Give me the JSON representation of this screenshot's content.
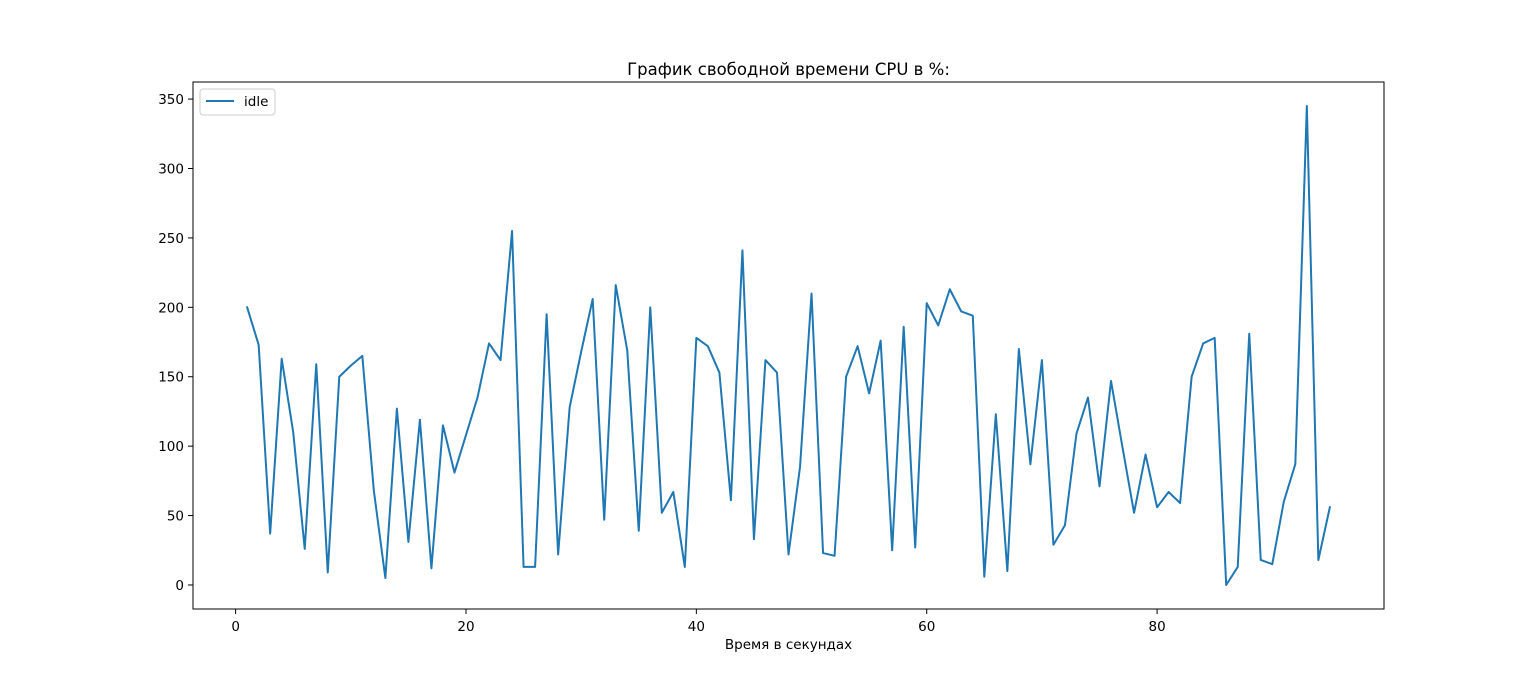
{
  "chart_data": {
    "type": "line",
    "title": "График свободной времени CPU в %:",
    "xlabel": "Время в секундах",
    "ylabel": "",
    "xlim": [
      -3.7,
      99.7
    ],
    "ylim": [
      -17.3,
      362.3
    ],
    "xticks": [
      0,
      20,
      40,
      60,
      80
    ],
    "yticks": [
      0,
      50,
      100,
      150,
      200,
      250,
      300,
      350
    ],
    "grid": false,
    "legend_position": "top-left",
    "line_color": "#1f77b4",
    "series": [
      {
        "name": "idle",
        "x": [
          1,
          2,
          3,
          4,
          5,
          6,
          7,
          8,
          9,
          10,
          11,
          12,
          13,
          14,
          15,
          16,
          17,
          18,
          19,
          20,
          21,
          22,
          23,
          24,
          25,
          26,
          27,
          28,
          29,
          30,
          31,
          32,
          33,
          34,
          35,
          36,
          37,
          38,
          39,
          40,
          41,
          42,
          43,
          44,
          45,
          46,
          47,
          48,
          49,
          50,
          51,
          52,
          53,
          54,
          55,
          56,
          57,
          58,
          59,
          60,
          61,
          62,
          63,
          64,
          65,
          66,
          67,
          68,
          69,
          70,
          71,
          72,
          73,
          74,
          75,
          76,
          77,
          78,
          79,
          80,
          81,
          82,
          83,
          84,
          85,
          86,
          87,
          88,
          89,
          90,
          91,
          92,
          93,
          94,
          95
        ],
        "values": [
          200,
          173,
          37,
          163,
          110,
          26,
          159,
          9,
          150,
          158,
          165,
          68,
          5,
          127,
          31,
          119,
          12,
          115,
          81,
          108,
          135,
          174,
          162,
          255,
          13,
          13,
          195,
          22,
          128,
          168,
          206,
          47,
          216,
          169,
          39,
          200,
          52,
          67,
          13,
          178,
          172,
          153,
          61,
          241,
          33,
          162,
          153,
          22,
          85,
          210,
          23,
          21,
          150,
          172,
          138,
          176,
          25,
          186,
          27,
          203,
          187,
          213,
          197,
          194,
          6,
          123,
          10,
          170,
          87,
          162,
          29,
          43,
          109,
          135,
          71,
          147,
          99,
          52,
          94,
          56,
          67,
          59,
          150,
          174,
          178,
          0,
          13,
          181,
          18,
          15,
          60,
          87,
          345,
          18,
          56
        ]
      }
    ]
  }
}
